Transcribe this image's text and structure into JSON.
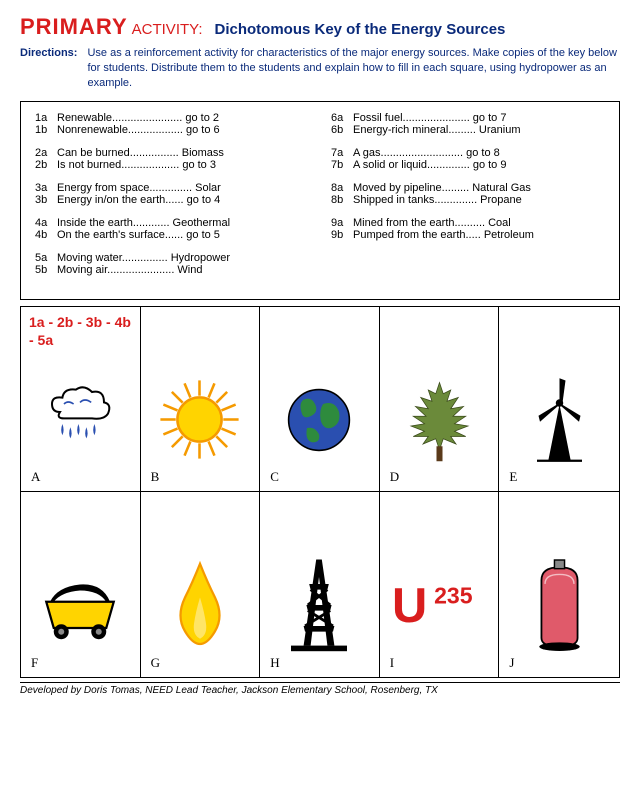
{
  "header": {
    "primary": "PRIMARY",
    "activity": "ACTIVITY:",
    "subtitle": "Dichotomous Key of the Energy Sources",
    "directions_label": "Directions:",
    "directions_text": "Use as a reinforcement activity for characteristics of the major energy sources. Make copies of the key below for students. Distribute them to the students and explain how to fill in each square, using hydropower as an example."
  },
  "key": {
    "left": [
      [
        {
          "id": "1a",
          "text": "Renewable....................... go to 2"
        },
        {
          "id": "1b",
          "text": "Nonrenewable.................. go to 6"
        }
      ],
      [
        {
          "id": "2a",
          "text": "Can be burned................ Biomass"
        },
        {
          "id": "2b",
          "text": "Is not burned................... go to 3"
        }
      ],
      [
        {
          "id": "3a",
          "text": "Energy from space.............. Solar"
        },
        {
          "id": "3b",
          "text": "Energy in/on the earth...... go to 4"
        }
      ],
      [
        {
          "id": "4a",
          "text": "Inside the earth............ Geothermal"
        },
        {
          "id": "4b",
          "text": "On the earth's surface...... go to 5"
        }
      ],
      [
        {
          "id": "5a",
          "text": "Moving water............... Hydropower"
        },
        {
          "id": "5b",
          "text": "Moving air...................... Wind"
        }
      ]
    ],
    "right": [
      [
        {
          "id": "6a",
          "text": "Fossil fuel...................... go to 7"
        },
        {
          "id": "6b",
          "text": "Energy-rich mineral......... Uranium"
        }
      ],
      [
        {
          "id": "7a",
          "text": "A gas........................... go to 8"
        },
        {
          "id": "7b",
          "text": "A solid or liquid.............. go to 9"
        }
      ],
      [
        {
          "id": "8a",
          "text": "Moved by pipeline......... Natural Gas"
        },
        {
          "id": "8b",
          "text": "Shipped in tanks.............. Propane"
        }
      ],
      [
        {
          "id": "9a",
          "text": "Mined from the earth.......... Coal"
        },
        {
          "id": "9b",
          "text": "Pumped from the earth..... Petroleum"
        }
      ]
    ]
  },
  "grid": {
    "answer_example": "1a - 2b - 3b - 4b - 5a",
    "cells": [
      {
        "label": "A",
        "icon": "cloud-rain"
      },
      {
        "label": "B",
        "icon": "sun"
      },
      {
        "label": "C",
        "icon": "globe"
      },
      {
        "label": "D",
        "icon": "tree"
      },
      {
        "label": "E",
        "icon": "windmill"
      },
      {
        "label": "F",
        "icon": "coal-cart"
      },
      {
        "label": "G",
        "icon": "flame"
      },
      {
        "label": "H",
        "icon": "oil-derrick"
      },
      {
        "label": "I",
        "icon": "uranium"
      },
      {
        "label": "J",
        "icon": "tank"
      }
    ]
  },
  "footer": "Developed by Doris Tomas, NEED Lead Teacher, Jackson Elementary School, Rosenberg, TX",
  "colors": {
    "red": "#d91e1e",
    "blue": "#0a2a7a",
    "yellow": "#ffd400",
    "sunorange": "#f59a00",
    "globeblue": "#2a4fb0",
    "globegreen": "#2e8b3d",
    "treegreen": "#6b8a3a",
    "tankpink": "#e05a6a"
  }
}
